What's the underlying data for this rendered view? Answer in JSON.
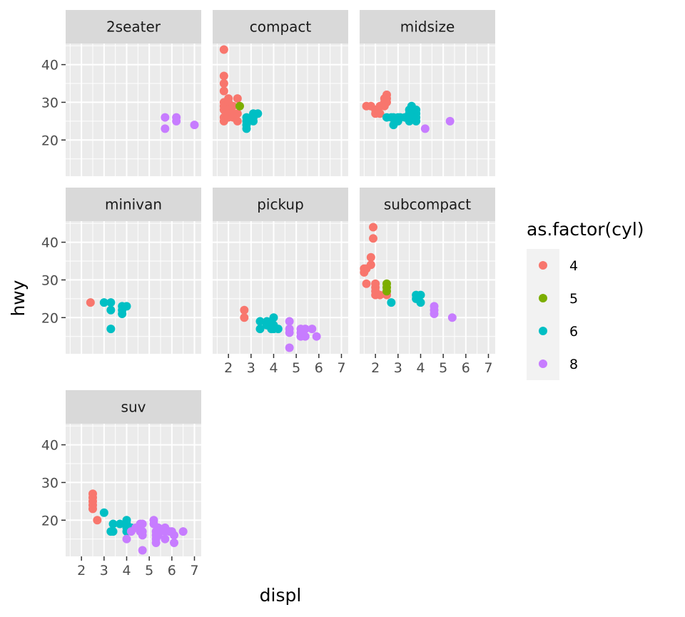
{
  "chart_data": {
    "type": "scatter",
    "xlabel": "displ",
    "ylabel": "hwy",
    "xlim": [
      1.3,
      7.3
    ],
    "ylim": [
      10.4,
      45.6
    ],
    "x_ticks": [
      2,
      3,
      4,
      5,
      6,
      7
    ],
    "y_ticks": [
      20,
      30,
      40
    ],
    "legend": {
      "title": "as.factor(cyl)",
      "position": "right",
      "entries": [
        {
          "label": "4",
          "color": "#F8766D"
        },
        {
          "label": "5",
          "color": "#7CAE00"
        },
        {
          "label": "6",
          "color": "#00BFC4"
        },
        {
          "label": "8",
          "color": "#C77CFF"
        }
      ]
    },
    "facets": [
      {
        "name": "2seater",
        "points": [
          {
            "x": 5.7,
            "y": 26,
            "cyl": "8"
          },
          {
            "x": 5.7,
            "y": 23,
            "cyl": "8"
          },
          {
            "x": 6.2,
            "y": 26,
            "cyl": "8"
          },
          {
            "x": 6.2,
            "y": 25,
            "cyl": "8"
          },
          {
            "x": 7.0,
            "y": 24,
            "cyl": "8"
          }
        ]
      },
      {
        "name": "compact",
        "points": [
          {
            "x": 1.8,
            "y": 44,
            "cyl": "4"
          },
          {
            "x": 1.8,
            "y": 37,
            "cyl": "4"
          },
          {
            "x": 1.8,
            "y": 35,
            "cyl": "4"
          },
          {
            "x": 1.8,
            "y": 33,
            "cyl": "4"
          },
          {
            "x": 1.8,
            "y": 30,
            "cyl": "4"
          },
          {
            "x": 1.8,
            "y": 29,
            "cyl": "4"
          },
          {
            "x": 1.8,
            "y": 28,
            "cyl": "4"
          },
          {
            "x": 1.8,
            "y": 26,
            "cyl": "4"
          },
          {
            "x": 1.8,
            "y": 25,
            "cyl": "4"
          },
          {
            "x": 1.9,
            "y": 29,
            "cyl": "4"
          },
          {
            "x": 2.0,
            "y": 31,
            "cyl": "4"
          },
          {
            "x": 2.0,
            "y": 30,
            "cyl": "4"
          },
          {
            "x": 2.0,
            "y": 28,
            "cyl": "4"
          },
          {
            "x": 2.0,
            "y": 27,
            "cyl": "4"
          },
          {
            "x": 2.0,
            "y": 26,
            "cyl": "4"
          },
          {
            "x": 2.2,
            "y": 29,
            "cyl": "4"
          },
          {
            "x": 2.2,
            "y": 27,
            "cyl": "4"
          },
          {
            "x": 2.2,
            "y": 26,
            "cyl": "4"
          },
          {
            "x": 2.4,
            "y": 31,
            "cyl": "4"
          },
          {
            "x": 2.4,
            "y": 27,
            "cyl": "4"
          },
          {
            "x": 2.4,
            "y": 25,
            "cyl": "4"
          },
          {
            "x": 2.5,
            "y": 29,
            "cyl": "5"
          },
          {
            "x": 2.8,
            "y": 26,
            "cyl": "6"
          },
          {
            "x": 2.8,
            "y": 25,
            "cyl": "6"
          },
          {
            "x": 2.8,
            "y": 24,
            "cyl": "6"
          },
          {
            "x": 2.8,
            "y": 23,
            "cyl": "6"
          },
          {
            "x": 3.1,
            "y": 27,
            "cyl": "6"
          },
          {
            "x": 3.1,
            "y": 26,
            "cyl": "6"
          },
          {
            "x": 3.1,
            "y": 25,
            "cyl": "6"
          },
          {
            "x": 3.3,
            "y": 27,
            "cyl": "6"
          }
        ]
      },
      {
        "name": "midsize",
        "points": [
          {
            "x": 1.6,
            "y": 29,
            "cyl": "4"
          },
          {
            "x": 1.8,
            "y": 29,
            "cyl": "4"
          },
          {
            "x": 2.0,
            "y": 28,
            "cyl": "4"
          },
          {
            "x": 2.0,
            "y": 27,
            "cyl": "4"
          },
          {
            "x": 2.2,
            "y": 29,
            "cyl": "4"
          },
          {
            "x": 2.2,
            "y": 27,
            "cyl": "4"
          },
          {
            "x": 2.4,
            "y": 31,
            "cyl": "4"
          },
          {
            "x": 2.4,
            "y": 30,
            "cyl": "4"
          },
          {
            "x": 2.4,
            "y": 29,
            "cyl": "4"
          },
          {
            "x": 2.5,
            "y": 32,
            "cyl": "4"
          },
          {
            "x": 2.5,
            "y": 31,
            "cyl": "4"
          },
          {
            "x": 2.5,
            "y": 30,
            "cyl": "4"
          },
          {
            "x": 2.5,
            "y": 26,
            "cyl": "6"
          },
          {
            "x": 2.7,
            "y": 26,
            "cyl": "6"
          },
          {
            "x": 2.8,
            "y": 24,
            "cyl": "6"
          },
          {
            "x": 2.8,
            "y": 26,
            "cyl": "6"
          },
          {
            "x": 3.0,
            "y": 26,
            "cyl": "6"
          },
          {
            "x": 3.0,
            "y": 25,
            "cyl": "6"
          },
          {
            "x": 3.1,
            "y": 26,
            "cyl": "6"
          },
          {
            "x": 3.3,
            "y": 26,
            "cyl": "6"
          },
          {
            "x": 3.5,
            "y": 28,
            "cyl": "6"
          },
          {
            "x": 3.5,
            "y": 27,
            "cyl": "6"
          },
          {
            "x": 3.5,
            "y": 26,
            "cyl": "6"
          },
          {
            "x": 3.5,
            "y": 25,
            "cyl": "6"
          },
          {
            "x": 3.6,
            "y": 29,
            "cyl": "6"
          },
          {
            "x": 3.8,
            "y": 28,
            "cyl": "6"
          },
          {
            "x": 3.8,
            "y": 27,
            "cyl": "6"
          },
          {
            "x": 3.8,
            "y": 26,
            "cyl": "6"
          },
          {
            "x": 3.8,
            "y": 25,
            "cyl": "6"
          },
          {
            "x": 4.2,
            "y": 23,
            "cyl": "8"
          },
          {
            "x": 5.3,
            "y": 25,
            "cyl": "8"
          }
        ]
      },
      {
        "name": "minivan",
        "points": [
          {
            "x": 2.4,
            "y": 24,
            "cyl": "4"
          },
          {
            "x": 3.0,
            "y": 24,
            "cyl": "6"
          },
          {
            "x": 3.3,
            "y": 24,
            "cyl": "6"
          },
          {
            "x": 3.3,
            "y": 22,
            "cyl": "6"
          },
          {
            "x": 3.3,
            "y": 17,
            "cyl": "6"
          },
          {
            "x": 3.8,
            "y": 23,
            "cyl": "6"
          },
          {
            "x": 3.8,
            "y": 22,
            "cyl": "6"
          },
          {
            "x": 3.8,
            "y": 21,
            "cyl": "6"
          },
          {
            "x": 4.0,
            "y": 23,
            "cyl": "6"
          }
        ]
      },
      {
        "name": "pickup",
        "points": [
          {
            "x": 2.7,
            "y": 22,
            "cyl": "4"
          },
          {
            "x": 2.7,
            "y": 20,
            "cyl": "4"
          },
          {
            "x": 3.4,
            "y": 19,
            "cyl": "6"
          },
          {
            "x": 3.4,
            "y": 17,
            "cyl": "6"
          },
          {
            "x": 3.7,
            "y": 19,
            "cyl": "6"
          },
          {
            "x": 3.7,
            "y": 18,
            "cyl": "6"
          },
          {
            "x": 3.9,
            "y": 19,
            "cyl": "6"
          },
          {
            "x": 3.9,
            "y": 17,
            "cyl": "6"
          },
          {
            "x": 4.0,
            "y": 20,
            "cyl": "6"
          },
          {
            "x": 4.0,
            "y": 18,
            "cyl": "6"
          },
          {
            "x": 4.0,
            "y": 17,
            "cyl": "6"
          },
          {
            "x": 4.2,
            "y": 17,
            "cyl": "6"
          },
          {
            "x": 4.7,
            "y": 19,
            "cyl": "8"
          },
          {
            "x": 4.7,
            "y": 17,
            "cyl": "8"
          },
          {
            "x": 4.7,
            "y": 16,
            "cyl": "8"
          },
          {
            "x": 4.7,
            "y": 12,
            "cyl": "8"
          },
          {
            "x": 5.2,
            "y": 17,
            "cyl": "8"
          },
          {
            "x": 5.2,
            "y": 16,
            "cyl": "8"
          },
          {
            "x": 5.2,
            "y": 15,
            "cyl": "8"
          },
          {
            "x": 5.4,
            "y": 17,
            "cyl": "8"
          },
          {
            "x": 5.4,
            "y": 15,
            "cyl": "8"
          },
          {
            "x": 5.7,
            "y": 17,
            "cyl": "8"
          },
          {
            "x": 5.9,
            "y": 15,
            "cyl": "8"
          }
        ]
      },
      {
        "name": "subcompact",
        "points": [
          {
            "x": 1.5,
            "y": 33,
            "cyl": "4"
          },
          {
            "x": 1.5,
            "y": 32,
            "cyl": "4"
          },
          {
            "x": 1.6,
            "y": 33,
            "cyl": "4"
          },
          {
            "x": 1.6,
            "y": 29,
            "cyl": "4"
          },
          {
            "x": 1.8,
            "y": 36,
            "cyl": "4"
          },
          {
            "x": 1.8,
            "y": 34,
            "cyl": "4"
          },
          {
            "x": 1.9,
            "y": 44,
            "cyl": "4"
          },
          {
            "x": 1.9,
            "y": 41,
            "cyl": "4"
          },
          {
            "x": 2.0,
            "y": 29,
            "cyl": "4"
          },
          {
            "x": 2.0,
            "y": 28,
            "cyl": "4"
          },
          {
            "x": 2.0,
            "y": 27,
            "cyl": "4"
          },
          {
            "x": 2.0,
            "y": 26,
            "cyl": "4"
          },
          {
            "x": 2.2,
            "y": 26,
            "cyl": "4"
          },
          {
            "x": 2.5,
            "y": 26,
            "cyl": "4"
          },
          {
            "x": 2.5,
            "y": 29,
            "cyl": "5"
          },
          {
            "x": 2.5,
            "y": 28,
            "cyl": "5"
          },
          {
            "x": 2.5,
            "y": 27,
            "cyl": "5"
          },
          {
            "x": 2.7,
            "y": 24,
            "cyl": "6"
          },
          {
            "x": 3.8,
            "y": 26,
            "cyl": "6"
          },
          {
            "x": 3.8,
            "y": 25,
            "cyl": "6"
          },
          {
            "x": 4.0,
            "y": 26,
            "cyl": "6"
          },
          {
            "x": 4.0,
            "y": 24,
            "cyl": "6"
          },
          {
            "x": 4.6,
            "y": 23,
            "cyl": "8"
          },
          {
            "x": 4.6,
            "y": 22,
            "cyl": "8"
          },
          {
            "x": 4.6,
            "y": 21,
            "cyl": "8"
          },
          {
            "x": 5.4,
            "y": 20,
            "cyl": "8"
          }
        ]
      },
      {
        "name": "suv",
        "points": [
          {
            "x": 2.5,
            "y": 27,
            "cyl": "4"
          },
          {
            "x": 2.5,
            "y": 26,
            "cyl": "4"
          },
          {
            "x": 2.5,
            "y": 25,
            "cyl": "4"
          },
          {
            "x": 2.5,
            "y": 24,
            "cyl": "4"
          },
          {
            "x": 2.5,
            "y": 23,
            "cyl": "4"
          },
          {
            "x": 2.7,
            "y": 20,
            "cyl": "4"
          },
          {
            "x": 3.0,
            "y": 22,
            "cyl": "6"
          },
          {
            "x": 3.3,
            "y": 17,
            "cyl": "6"
          },
          {
            "x": 3.4,
            "y": 19,
            "cyl": "6"
          },
          {
            "x": 3.4,
            "y": 17,
            "cyl": "6"
          },
          {
            "x": 3.7,
            "y": 19,
            "cyl": "6"
          },
          {
            "x": 4.0,
            "y": 20,
            "cyl": "6"
          },
          {
            "x": 4.0,
            "y": 19,
            "cyl": "6"
          },
          {
            "x": 4.0,
            "y": 18,
            "cyl": "6"
          },
          {
            "x": 4.0,
            "y": 17,
            "cyl": "6"
          },
          {
            "x": 4.2,
            "y": 18,
            "cyl": "6"
          },
          {
            "x": 4.0,
            "y": 15,
            "cyl": "8"
          },
          {
            "x": 4.2,
            "y": 17,
            "cyl": "8"
          },
          {
            "x": 4.4,
            "y": 18,
            "cyl": "8"
          },
          {
            "x": 4.6,
            "y": 19,
            "cyl": "8"
          },
          {
            "x": 4.6,
            "y": 17,
            "cyl": "8"
          },
          {
            "x": 4.7,
            "y": 19,
            "cyl": "8"
          },
          {
            "x": 4.7,
            "y": 17,
            "cyl": "8"
          },
          {
            "x": 4.7,
            "y": 16,
            "cyl": "8"
          },
          {
            "x": 4.7,
            "y": 12,
            "cyl": "8"
          },
          {
            "x": 5.2,
            "y": 20,
            "cyl": "8"
          },
          {
            "x": 5.2,
            "y": 19,
            "cyl": "8"
          },
          {
            "x": 5.3,
            "y": 17,
            "cyl": "8"
          },
          {
            "x": 5.3,
            "y": 16,
            "cyl": "8"
          },
          {
            "x": 5.3,
            "y": 15,
            "cyl": "8"
          },
          {
            "x": 5.3,
            "y": 14,
            "cyl": "8"
          },
          {
            "x": 5.4,
            "y": 18,
            "cyl": "8"
          },
          {
            "x": 5.4,
            "y": 17,
            "cyl": "8"
          },
          {
            "x": 5.4,
            "y": 16,
            "cyl": "8"
          },
          {
            "x": 5.7,
            "y": 18,
            "cyl": "8"
          },
          {
            "x": 5.7,
            "y": 17,
            "cyl": "8"
          },
          {
            "x": 5.7,
            "y": 15,
            "cyl": "8"
          },
          {
            "x": 5.9,
            "y": 17,
            "cyl": "8"
          },
          {
            "x": 6.0,
            "y": 17,
            "cyl": "8"
          },
          {
            "x": 6.1,
            "y": 16,
            "cyl": "8"
          },
          {
            "x": 6.1,
            "y": 14,
            "cyl": "8"
          },
          {
            "x": 6.5,
            "y": 17,
            "cyl": "8"
          }
        ]
      }
    ]
  }
}
